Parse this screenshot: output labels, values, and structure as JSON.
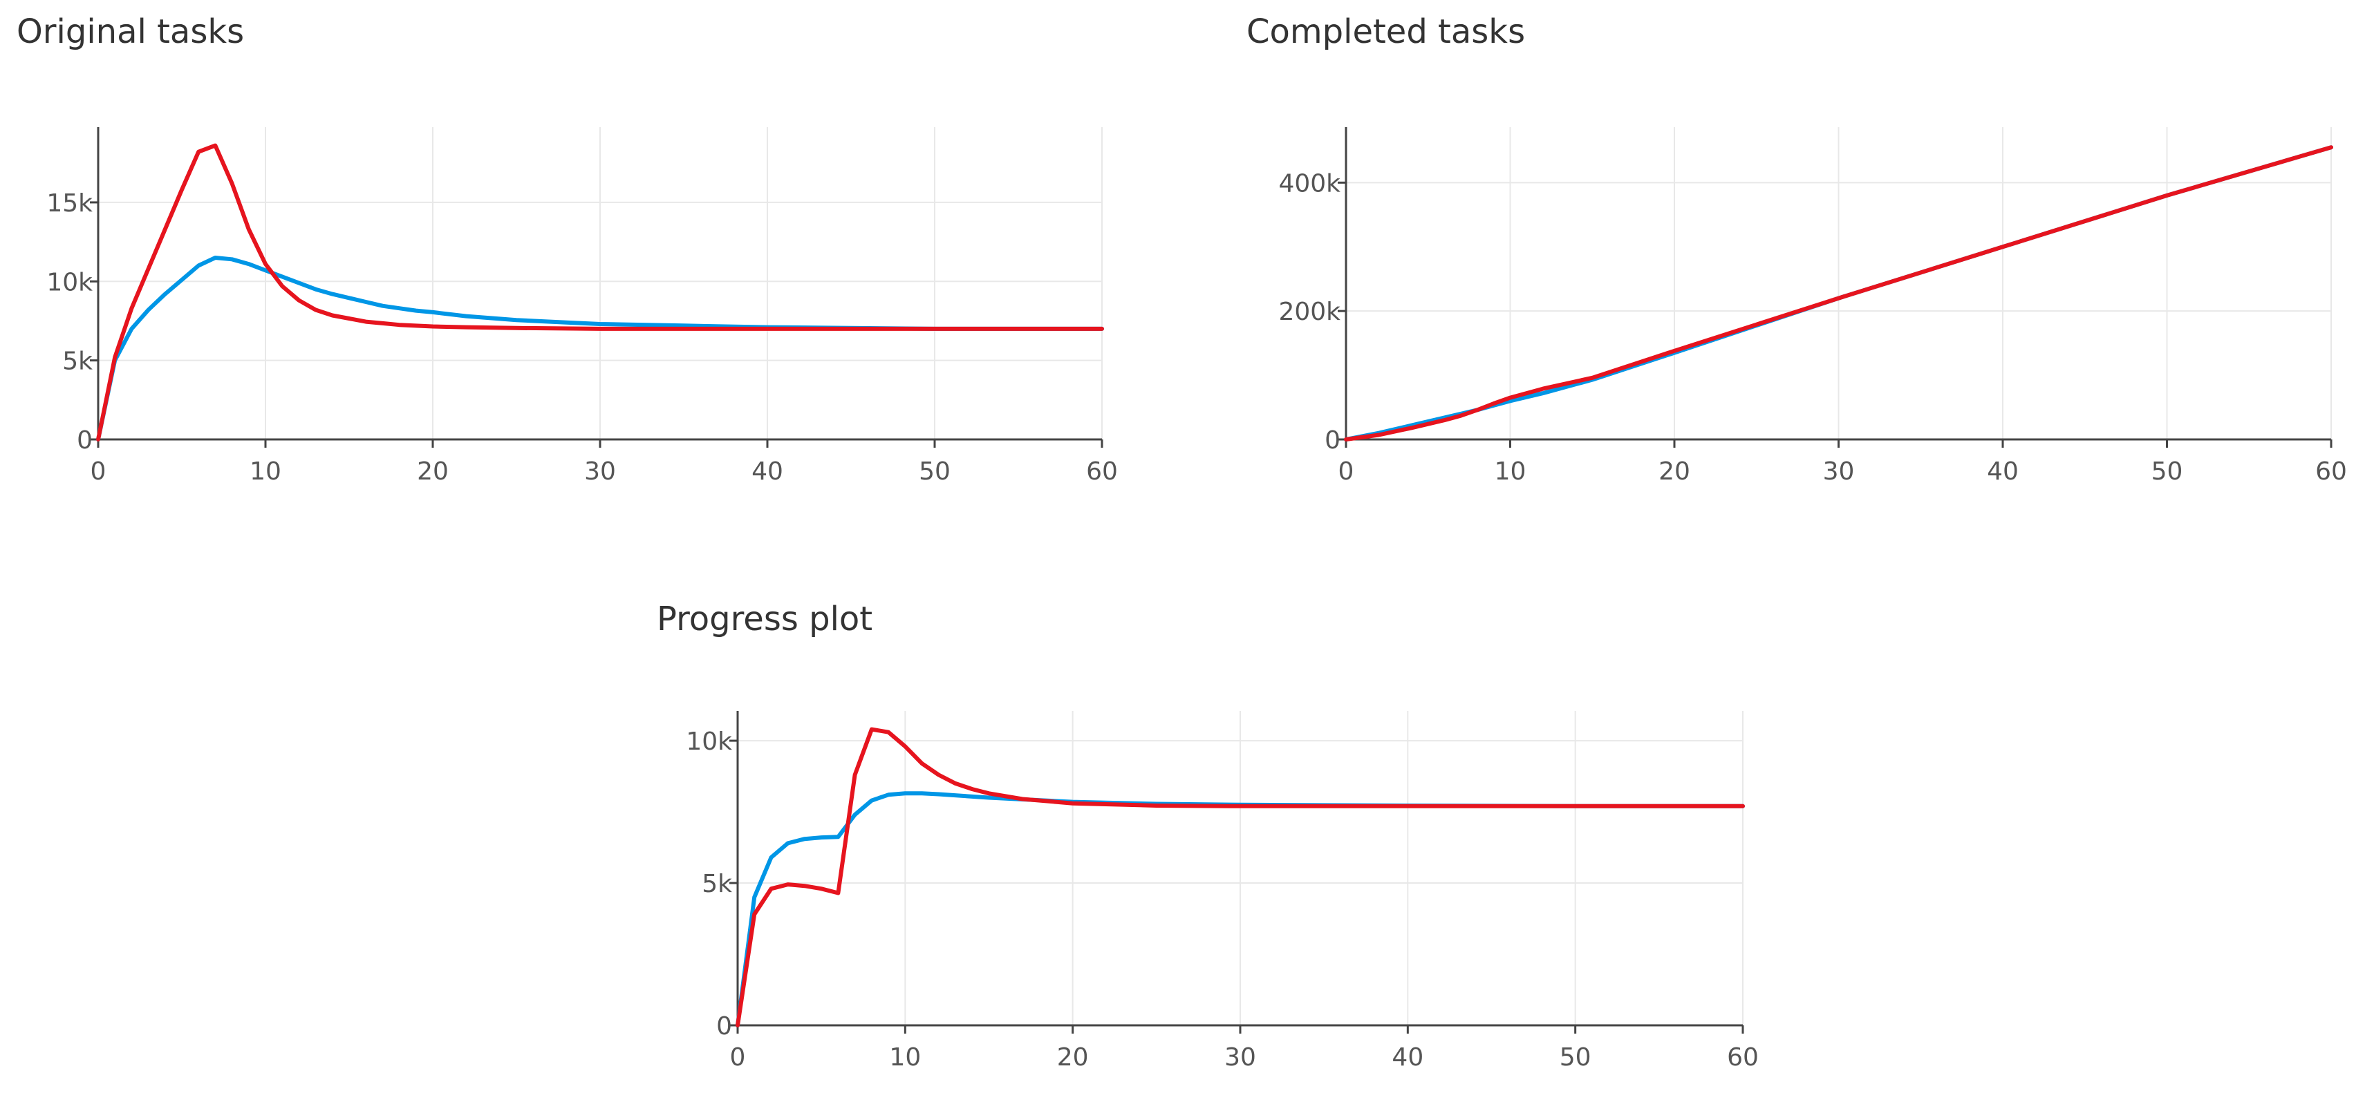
{
  "series_colors": {
    "blue": "#0096e6",
    "red": "#e6141e"
  },
  "chart_data": [
    {
      "id": "original",
      "type": "line",
      "title": "Original tasks",
      "xlabel": "",
      "ylabel": "",
      "xlim": [
        0,
        60
      ],
      "ylim": [
        0,
        19500
      ],
      "xticks": [
        0,
        10,
        20,
        30,
        40,
        50,
        60
      ],
      "xtick_labels": [
        "0",
        "10",
        "20",
        "30",
        "40",
        "50",
        "60"
      ],
      "yticks": [
        0,
        5000,
        10000,
        15000
      ],
      "ytick_labels": [
        "0",
        "5k",
        "10k",
        "15k"
      ],
      "grid": true,
      "series": [
        {
          "color": "#0096e6",
          "x": [
            0,
            1,
            2,
            3,
            4,
            5,
            6,
            7,
            8,
            9,
            10,
            11,
            12,
            13,
            14,
            15,
            16,
            17,
            18,
            19,
            20,
            22,
            25,
            28,
            30,
            35,
            40,
            45,
            50,
            55,
            60
          ],
          "y": [
            0,
            5000,
            7000,
            8200,
            9200,
            10100,
            11000,
            11500,
            11400,
            11100,
            10700,
            10300,
            9900,
            9500,
            9200,
            8950,
            8700,
            8450,
            8300,
            8150,
            8050,
            7800,
            7550,
            7400,
            7300,
            7200,
            7100,
            7050,
            7000,
            7000,
            7000
          ]
        },
        {
          "color": "#e6141e",
          "x": [
            0,
            1,
            2,
            3,
            4,
            5,
            6,
            7,
            8,
            9,
            10,
            11,
            12,
            13,
            14,
            15,
            16,
            17,
            18,
            20,
            22,
            25,
            30,
            35,
            40,
            45,
            50,
            55,
            60
          ],
          "y": [
            0,
            5200,
            8300,
            10800,
            13300,
            15800,
            18200,
            18600,
            16200,
            13300,
            11100,
            9700,
            8800,
            8200,
            7850,
            7650,
            7450,
            7350,
            7250,
            7150,
            7100,
            7050,
            7000,
            7000,
            7000,
            7000,
            7000,
            7000,
            7000
          ]
        }
      ]
    },
    {
      "id": "completed",
      "type": "line",
      "title": "Completed tasks",
      "xlabel": "",
      "ylabel": "",
      "xlim": [
        0,
        60
      ],
      "ylim": [
        0,
        480000
      ],
      "xticks": [
        0,
        10,
        20,
        30,
        40,
        50,
        60
      ],
      "xtick_labels": [
        "0",
        "10",
        "20",
        "30",
        "40",
        "50",
        "60"
      ],
      "yticks": [
        0,
        200000,
        400000
      ],
      "ytick_labels": [
        "0",
        "200k",
        "400k"
      ],
      "grid": true,
      "series": [
        {
          "color": "#0096e6",
          "x": [
            0,
            2,
            4,
            6,
            8,
            10,
            12,
            15,
            20,
            30,
            40,
            50,
            60
          ],
          "y": [
            0,
            10000,
            22000,
            34000,
            46000,
            60000,
            72000,
            93000,
            135000,
            220000,
            300000,
            380000,
            455000
          ]
        },
        {
          "color": "#e6141e",
          "x": [
            0,
            2,
            4,
            6,
            7,
            8,
            9,
            10,
            12,
            15,
            20,
            30,
            40,
            50,
            60
          ],
          "y": [
            0,
            7000,
            18000,
            30000,
            37000,
            46000,
            56000,
            65000,
            79000,
            96000,
            138000,
            220000,
            300000,
            380000,
            455000
          ]
        }
      ]
    },
    {
      "id": "progress",
      "type": "line",
      "title": "Progress plot",
      "xlabel": "",
      "ylabel": "",
      "xlim": [
        0,
        60
      ],
      "ylim": [
        0,
        10900
      ],
      "xticks": [
        0,
        10,
        20,
        30,
        40,
        50,
        60
      ],
      "xtick_labels": [
        "0",
        "10",
        "20",
        "30",
        "40",
        "50",
        "60"
      ],
      "yticks": [
        0,
        5000,
        10000
      ],
      "ytick_labels": [
        "0",
        "5k",
        "10k"
      ],
      "grid": true,
      "series": [
        {
          "color": "#0096e6",
          "x": [
            0,
            1,
            2,
            3,
            4,
            5,
            6,
            7,
            8,
            9,
            10,
            11,
            12,
            15,
            20,
            25,
            30,
            40,
            50,
            60
          ],
          "y": [
            0,
            4500,
            5900,
            6400,
            6550,
            6600,
            6620,
            7400,
            7900,
            8100,
            8150,
            8150,
            8120,
            8000,
            7850,
            7780,
            7750,
            7720,
            7700,
            7700
          ]
        },
        {
          "color": "#e6141e",
          "x": [
            0,
            1,
            2,
            3,
            4,
            5,
            6,
            7,
            8,
            9,
            10,
            11,
            12,
            13,
            14,
            15,
            17,
            20,
            25,
            30,
            40,
            50,
            60
          ],
          "y": [
            0,
            3900,
            4800,
            4950,
            4900,
            4800,
            4650,
            8800,
            10400,
            10300,
            9800,
            9200,
            8800,
            8500,
            8300,
            8150,
            7950,
            7800,
            7720,
            7700,
            7700,
            7700,
            7700
          ]
        }
      ]
    }
  ]
}
